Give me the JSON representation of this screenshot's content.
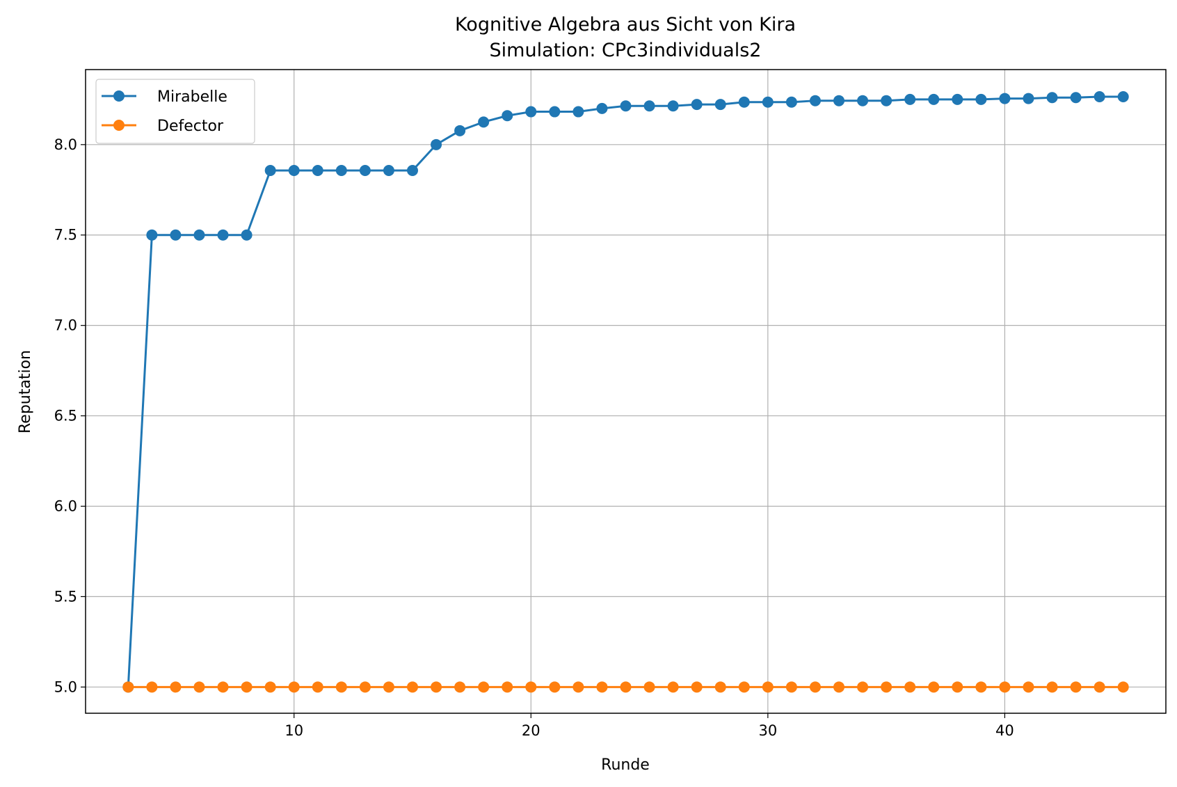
{
  "chart_data": {
    "type": "line",
    "title": "Kognitive Algebra aus Sicht von Kira",
    "subtitle": "Simulation: CPc3individuals2",
    "xlabel": "Runde",
    "ylabel": "Reputation",
    "xlim": [
      1.2,
      46.8
    ],
    "ylim": [
      4.855,
      8.415
    ],
    "xticks": [
      10,
      20,
      30,
      40
    ],
    "xtick_labels": [
      "10",
      "20",
      "30",
      "40"
    ],
    "yticks": [
      5.0,
      5.5,
      6.0,
      6.5,
      7.0,
      7.5,
      8.0
    ],
    "ytick_labels": [
      "5.0",
      "5.5",
      "6.0",
      "6.5",
      "7.0",
      "7.5",
      "8.0"
    ],
    "grid": true,
    "legend_position": "top-left",
    "x": [
      3,
      4,
      5,
      6,
      7,
      8,
      9,
      10,
      11,
      12,
      13,
      14,
      15,
      16,
      17,
      18,
      19,
      20,
      21,
      22,
      23,
      24,
      25,
      26,
      27,
      28,
      29,
      30,
      31,
      32,
      33,
      34,
      35,
      36,
      37,
      38,
      39,
      40,
      41,
      42,
      43,
      44,
      45
    ],
    "series": [
      {
        "name": "Mirabelle",
        "color": "#1f77b4",
        "values": [
          5.0,
          7.5,
          7.5,
          7.5,
          7.5,
          7.5,
          7.857,
          7.857,
          7.857,
          7.857,
          7.857,
          7.857,
          7.857,
          8.0,
          8.077,
          8.125,
          8.16,
          8.182,
          8.182,
          8.182,
          8.2,
          8.214,
          8.214,
          8.214,
          8.222,
          8.222,
          8.235,
          8.235,
          8.235,
          8.243,
          8.243,
          8.243,
          8.243,
          8.25,
          8.25,
          8.25,
          8.25,
          8.255,
          8.255,
          8.26,
          8.26,
          8.265,
          8.265
        ]
      },
      {
        "name": "Defector",
        "color": "#ff7f0e",
        "values": [
          5.0,
          5.0,
          5.0,
          5.0,
          5.0,
          5.0,
          5.0,
          5.0,
          5.0,
          5.0,
          5.0,
          5.0,
          5.0,
          5.0,
          5.0,
          5.0,
          5.0,
          5.0,
          5.0,
          5.0,
          5.0,
          5.0,
          5.0,
          5.0,
          5.0,
          5.0,
          5.0,
          5.0,
          5.0,
          5.0,
          5.0,
          5.0,
          5.0,
          5.0,
          5.0,
          5.0,
          5.0,
          5.0,
          5.0,
          5.0,
          5.0,
          5.0,
          5.0
        ]
      }
    ]
  }
}
